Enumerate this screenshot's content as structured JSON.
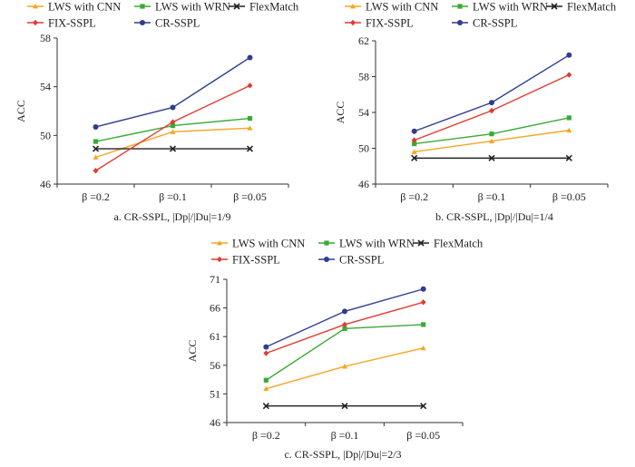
{
  "colors": {
    "LWS with CNN": "#f5a623",
    "LWS with WRN": "#3aaa35",
    "FlexMatch": "#222222",
    "FIX-SSPL": "#e03c31",
    "CR-SSPL": "#2f3d8f"
  },
  "markers": {
    "LWS with CNN": "triangle",
    "LWS with WRN": "square",
    "FlexMatch": "cross",
    "FIX-SSPL": "diamond",
    "CR-SSPL": "circle"
  },
  "chart_data": [
    {
      "type": "line",
      "panel_id": "a",
      "caption": "a.  CR-SSPL, |Dp|/|Du|=1/9",
      "ylabel": "ACC",
      "categories": [
        "β =0.2",
        "β =0.1",
        "β =0.05"
      ],
      "ylim": [
        46,
        58
      ],
      "yticks": [
        46,
        50,
        54,
        58
      ],
      "legend": [
        "LWS with CNN",
        "LWS with WRN",
        "FlexMatch",
        "FIX-SSPL",
        "CR-SSPL"
      ],
      "series": [
        {
          "name": "LWS with CNN",
          "values": [
            48.2,
            50.3,
            50.6
          ]
        },
        {
          "name": "LWS with WRN",
          "values": [
            49.5,
            50.8,
            51.4
          ]
        },
        {
          "name": "FlexMatch",
          "values": [
            48.9,
            48.9,
            48.9
          ]
        },
        {
          "name": "FIX-SSPL",
          "values": [
            47.1,
            51.1,
            54.1
          ]
        },
        {
          "name": "CR-SSPL",
          "values": [
            50.7,
            52.3,
            56.4
          ]
        }
      ]
    },
    {
      "type": "line",
      "panel_id": "b",
      "caption": "b.  CR-SSPL, |Dp|/|Du|=1/4",
      "ylabel": "ACC",
      "categories": [
        "β =0.2",
        "β =0.1",
        "β =0.05"
      ],
      "ylim": [
        46,
        62
      ],
      "yticks": [
        46,
        50,
        54,
        58,
        62
      ],
      "legend": [
        "LWS with CNN",
        "LWS with WRN",
        "FlexMatch",
        "FIX-SSPL",
        "CR-SSPL"
      ],
      "series": [
        {
          "name": "LWS with CNN",
          "values": [
            49.6,
            50.8,
            52.0
          ]
        },
        {
          "name": "LWS with WRN",
          "values": [
            50.5,
            51.6,
            53.4
          ]
        },
        {
          "name": "FlexMatch",
          "values": [
            48.9,
            48.9,
            48.9
          ]
        },
        {
          "name": "FIX-SSPL",
          "values": [
            50.9,
            54.2,
            58.2
          ]
        },
        {
          "name": "CR-SSPL",
          "values": [
            51.9,
            55.1,
            60.4
          ]
        }
      ]
    },
    {
      "type": "line",
      "panel_id": "c",
      "caption": "c.  CR-SSPL, |Dp|/|Du|=2/3",
      "ylabel": "ACC",
      "categories": [
        "β =0.2",
        "β =0.1",
        "β =0.05"
      ],
      "ylim": [
        46,
        71
      ],
      "yticks": [
        46,
        51,
        56,
        61,
        66,
        71
      ],
      "legend": [
        "LWS with CNN",
        "LWS with WRN",
        "FlexMatch",
        "FIX-SSPL",
        "CR-SSPL"
      ],
      "series": [
        {
          "name": "LWS with CNN",
          "values": [
            51.9,
            55.8,
            59.0
          ]
        },
        {
          "name": "LWS with WRN",
          "values": [
            53.4,
            62.4,
            63.1
          ]
        },
        {
          "name": "FlexMatch",
          "values": [
            48.9,
            48.9,
            48.9
          ]
        },
        {
          "name": "FIX-SSPL",
          "values": [
            58.1,
            63.1,
            67.0
          ]
        },
        {
          "name": "CR-SSPL",
          "values": [
            59.2,
            65.4,
            69.3
          ]
        }
      ]
    }
  ]
}
